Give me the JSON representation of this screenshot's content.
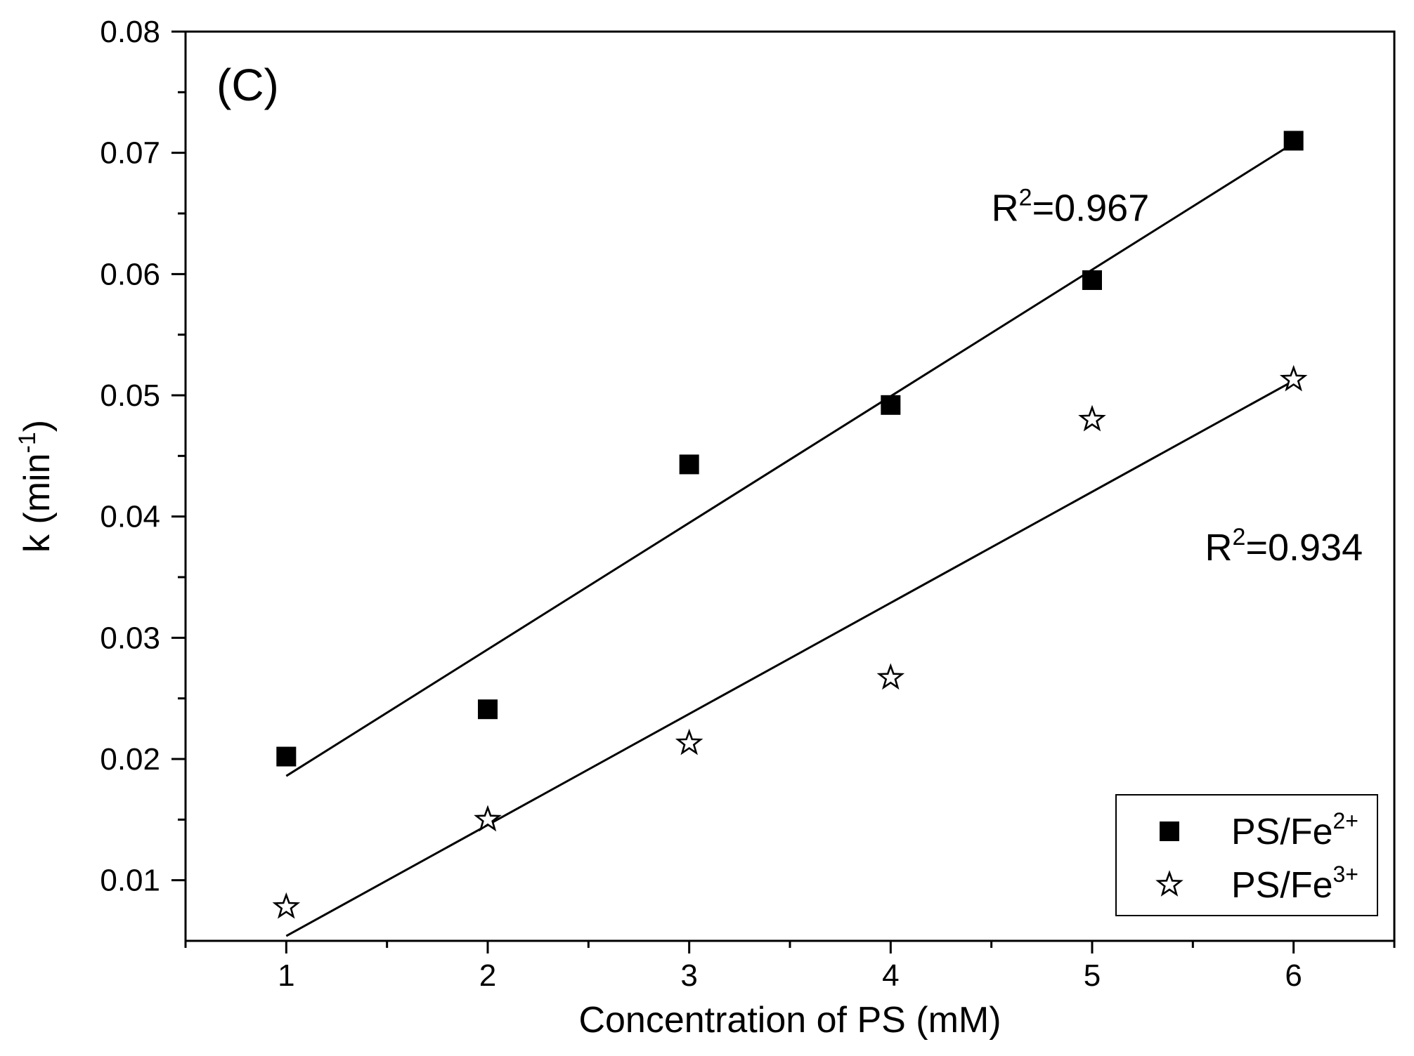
{
  "chart_data": {
    "type": "scatter",
    "panel_label": "(C)",
    "xlabel": "Concentration of PS (mM)",
    "ylabel": {
      "base": "k (min",
      "sup": "-1",
      "tail": ")"
    },
    "xlim": [
      0.5,
      6.5
    ],
    "ylim": [
      0.005,
      0.08
    ],
    "x_major_ticks": [
      1,
      2,
      3,
      4,
      5,
      6
    ],
    "x_minor_ticks": [
      0.5,
      1.5,
      2.5,
      3.5,
      4.5,
      5.5,
      6.5
    ],
    "y_major_ticks": [
      0.01,
      0.02,
      0.03,
      0.04,
      0.05,
      0.06,
      0.07,
      0.08
    ],
    "y_minor_ticks": [
      0.015,
      0.025,
      0.035,
      0.045,
      0.055,
      0.065,
      0.075
    ],
    "x_tick_labels": [
      "1",
      "2",
      "3",
      "4",
      "5",
      "6"
    ],
    "y_tick_labels": [
      "0.01",
      "0.02",
      "0.03",
      "0.04",
      "0.05",
      "0.06",
      "0.07",
      "0.08"
    ],
    "legend_position": "bottom-right",
    "series": [
      {
        "name": "PS/Fe2+",
        "legend": {
          "base": "PS/Fe",
          "sup": "2+"
        },
        "marker": "filled-square",
        "color": "#000000",
        "x": [
          1,
          2,
          3,
          4,
          5,
          6
        ],
        "y": [
          0.0202,
          0.0241,
          0.0443,
          0.0492,
          0.0595,
          0.071
        ],
        "fit": {
          "x": [
            1,
            6
          ],
          "y": [
            0.0186,
            0.0708
          ]
        },
        "r2_label": {
          "base": "R",
          "sup": "2",
          "tail": "=0.967"
        },
        "r2_anchor": {
          "x": 4.5,
          "y": 0.0644
        }
      },
      {
        "name": "PS/Fe3+",
        "legend": {
          "base": "PS/Fe",
          "sup": "3+"
        },
        "marker": "open-star",
        "color": "#000000",
        "x": [
          1,
          2,
          3,
          4,
          5,
          6
        ],
        "y": [
          0.0078,
          0.015,
          0.0213,
          0.0267,
          0.048,
          0.0513
        ],
        "fit": {
          "x": [
            1,
            6
          ],
          "y": [
            0.0054,
            0.0512
          ]
        },
        "r2_label": {
          "base": "R",
          "sup": "2",
          "tail": "=0.934"
        },
        "r2_anchor": {
          "x": 5.56,
          "y": 0.0364
        }
      }
    ]
  }
}
